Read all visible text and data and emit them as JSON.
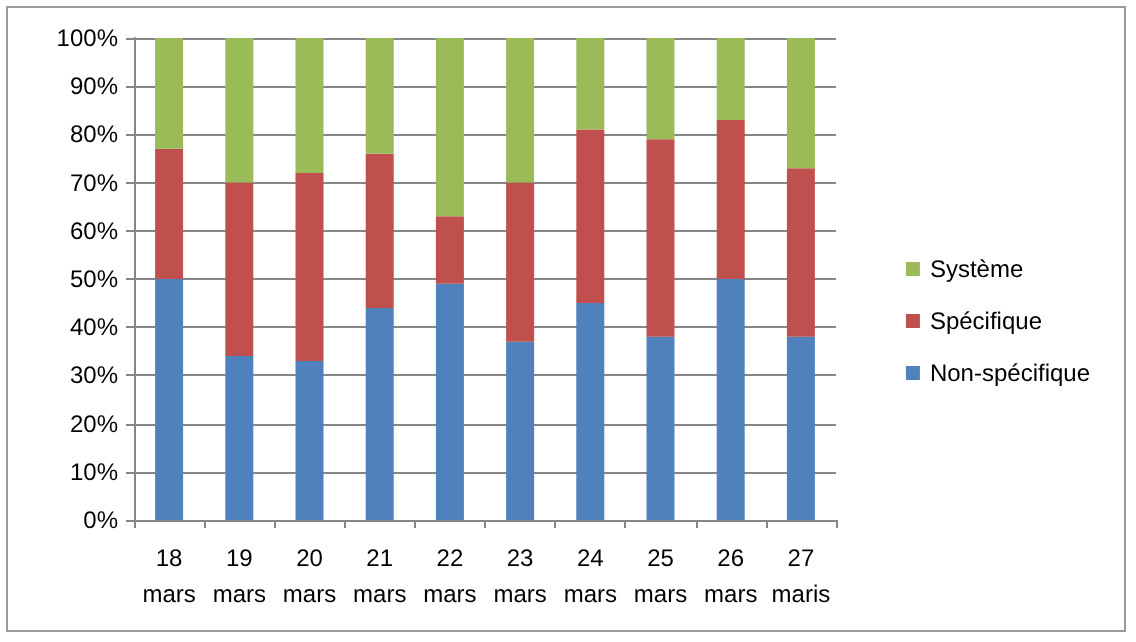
{
  "chart_data": {
    "type": "bar",
    "stacked": true,
    "categories": [
      "18\nmars",
      "19\nmars",
      "20\nmars",
      "21\nmars",
      "22\nmars",
      "23\nmars",
      "24\nmars",
      "25\nmars",
      "26\nmars",
      "27\nmaris"
    ],
    "series": [
      {
        "name": "Non-spécifique",
        "color": "#4f81bd",
        "values": [
          50,
          34,
          33,
          44,
          49,
          37,
          45,
          38,
          50,
          38
        ]
      },
      {
        "name": "Spécifique",
        "color": "#c0504d",
        "values": [
          27,
          36,
          39,
          32,
          14,
          33,
          36,
          41,
          33,
          35
        ]
      },
      {
        "name": "Système",
        "color": "#9bbb59",
        "values": [
          23,
          30,
          28,
          24,
          37,
          30,
          19,
          21,
          17,
          27
        ]
      }
    ],
    "ylim": [
      0,
      100
    ],
    "yticks": [
      {
        "value": 0,
        "label": "0%"
      },
      {
        "value": 10,
        "label": "10%"
      },
      {
        "value": 20,
        "label": "20%"
      },
      {
        "value": 30,
        "label": "30%"
      },
      {
        "value": 40,
        "label": "40%"
      },
      {
        "value": 50,
        "label": "50%"
      },
      {
        "value": 60,
        "label": "60%"
      },
      {
        "value": 70,
        "label": "70%"
      },
      {
        "value": 80,
        "label": "80%"
      },
      {
        "value": 90,
        "label": "90%"
      },
      {
        "value": 100,
        "label": "100%"
      }
    ],
    "grid": "y",
    "legend": "right"
  }
}
